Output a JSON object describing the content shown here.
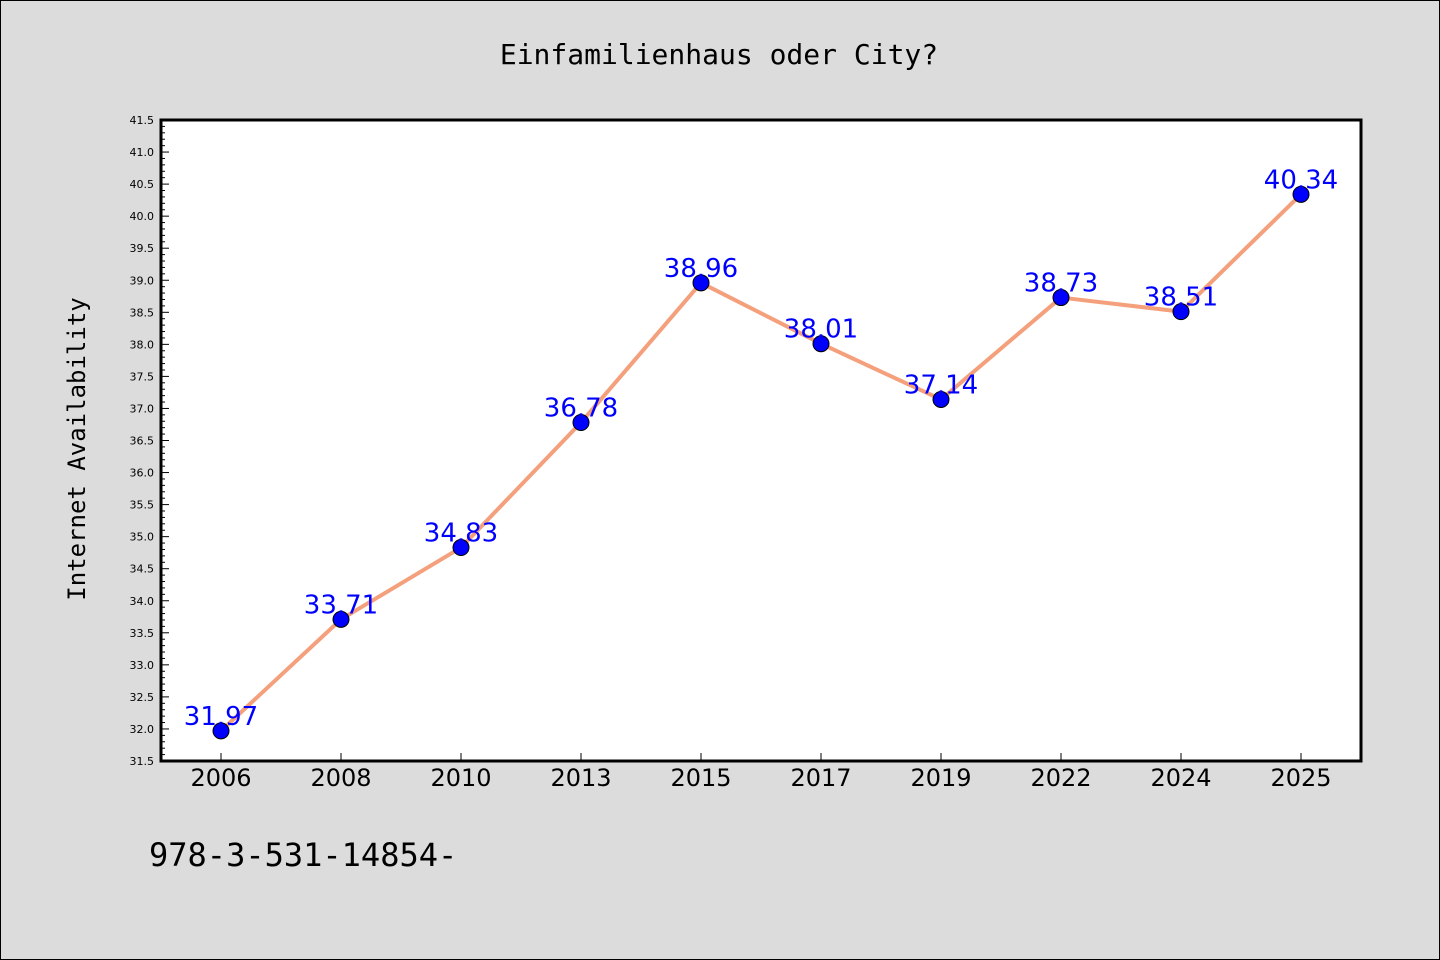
{
  "chart_data": {
    "type": "line",
    "title": "Einfamilienhaus oder City?",
    "xlabel": "",
    "ylabel": "Internet Availability",
    "categories": [
      "2006",
      "2008",
      "2010",
      "2013",
      "2015",
      "2017",
      "2019",
      "2022",
      "2024",
      "2025"
    ],
    "series": [
      {
        "values": [
          31.97,
          33.71,
          34.83,
          36.78,
          38.96,
          38.01,
          37.14,
          38.73,
          38.51,
          40.34
        ],
        "data_labels": [
          "31.97",
          "33.71",
          "34.83",
          "36.78",
          "38.96",
          "38.01",
          "37.14",
          "38.73",
          "38.51",
          "40.34"
        ],
        "line_color": "#f4a07c",
        "marker_color": "#0000ff"
      }
    ],
    "ylim": [
      31.5,
      41.5
    ],
    "y_major_ticks": [
      "31.5",
      "32.0",
      "32.5",
      "33.0",
      "33.5",
      "34.0",
      "34.5",
      "35.0",
      "35.5",
      "36.0",
      "36.5",
      "37.0",
      "37.5",
      "38.0",
      "38.5",
      "39.0",
      "39.5",
      "40.0",
      "40.5",
      "41.0",
      "41.5"
    ],
    "grid": false,
    "legend": "none",
    "label_color": "#0000ff",
    "background_color": "#dcdcdc",
    "plot_background_color": "#ffffff"
  },
  "footer": {
    "text": "978-3-531-14854-"
  }
}
